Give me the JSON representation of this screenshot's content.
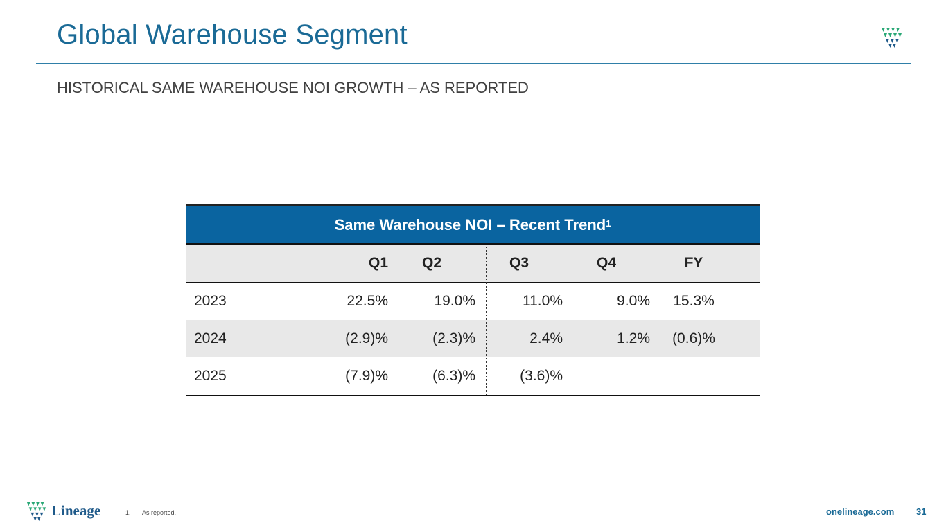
{
  "header": {
    "title": "Global Warehouse Segment",
    "subtitle": "HISTORICAL SAME WAREHOUSE NOI GROWTH – AS REPORTED"
  },
  "table": {
    "title": "Same Warehouse NOI – Recent Trend",
    "title_sup": "1",
    "columns": [
      "",
      "Q1",
      "Q2",
      "Q3",
      "Q4",
      "FY"
    ],
    "rows": [
      {
        "year": "2023",
        "q1": "22.5%",
        "q2": "19.0%",
        "q3": "11.0%",
        "q4": "9.0%",
        "fy": "15.3%"
      },
      {
        "year": "2024",
        "q1": "(2.9)%",
        "q2": "(2.3)%",
        "q3": "2.4%",
        "q4": "1.2%",
        "fy": "(0.6)%"
      },
      {
        "year": "2025",
        "q1": "(7.9)%",
        "q2": "(6.3)%",
        "q3": "(3.6)%",
        "q4": "",
        "fy": ""
      }
    ]
  },
  "footer": {
    "brand": "Lineage",
    "footnote_num": "1.",
    "footnote_text": "As reported.",
    "website": "onelineage.com",
    "page_number": "31"
  },
  "colors": {
    "title": "#1a6a96",
    "table_header": "#0a64a0",
    "shade": "#e8e8e8",
    "logo_green": "#2aa876",
    "logo_blue": "#1f5a8a"
  },
  "icons": {
    "logo": "lineage-logo-icon"
  }
}
